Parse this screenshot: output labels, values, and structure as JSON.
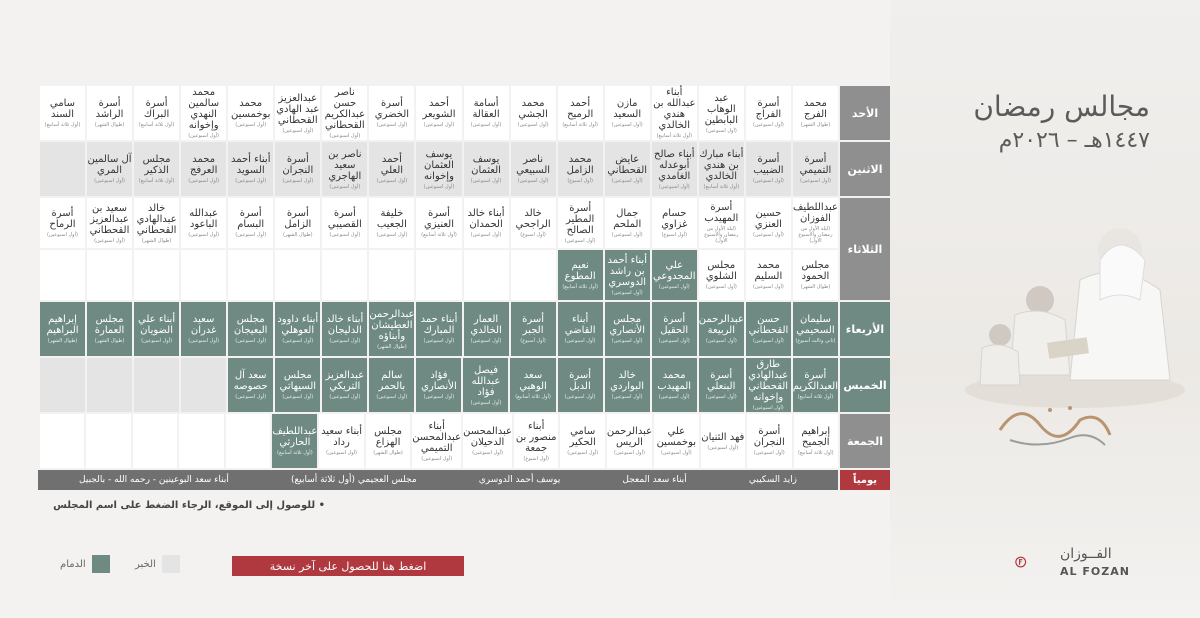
{
  "header": {
    "title": "مجالس رمضان",
    "subtitle": "١٤٤٧هـ – ٢٠٢٦م"
  },
  "days": [
    {
      "key": "sun",
      "label": "الأحد",
      "style": "grey",
      "cells": [
        {
          "name": "محمد الفرج",
          "note": "(طوال الشهر)",
          "kind": "white"
        },
        {
          "name": "أسرة الفراج",
          "note": "(أول اسبوعين)",
          "kind": "white"
        },
        {
          "name": "عبد الوهاب البابطين",
          "note": "(أول اسبوعين)",
          "kind": "white"
        },
        {
          "name": "أبناء عبدالله بن هندي الخالدي",
          "note": "(أول ثلاثة أسابيع)",
          "kind": "white"
        },
        {
          "name": "مازن السعيد",
          "note": "(أول اسبوعين)",
          "kind": "white"
        },
        {
          "name": "أحمد الرميح",
          "note": "(أول ثلاثة أسابيع)",
          "kind": "white"
        },
        {
          "name": "محمد الجشي",
          "note": "(أول اسبوعين)",
          "kind": "white"
        },
        {
          "name": "أسامة العقالة",
          "note": "(أول اسبوعين)",
          "kind": "white"
        },
        {
          "name": "أحمد الشويعر",
          "note": "(أول اسبوعين)",
          "kind": "white"
        },
        {
          "name": "أسرة الخضري",
          "note": "(أول اسبوعين)",
          "kind": "white"
        },
        {
          "name": "ناصر حسن عبدالكريم القحطاني",
          "note": "(أول اسبوعين)",
          "kind": "white"
        },
        {
          "name": "عبدالعزيز عبد الهادي القحطاني",
          "note": "(أول اسبوعين)",
          "kind": "white"
        },
        {
          "name": "محمد بوخمسين",
          "note": "(أول اسبوعين)",
          "kind": "white"
        },
        {
          "name": "محمد سالمين النهدي وإخوانه",
          "note": "(أول اسبوعين)",
          "kind": "white"
        },
        {
          "name": "أسرة البراك",
          "note": "(أول ثلاثة أسابيع)",
          "kind": "white"
        },
        {
          "name": "أسرة الراشد",
          "note": "(طوال الشهر)",
          "kind": "white"
        },
        {
          "name": "سامي السند",
          "note": "(أول ثلاثة أسابيع)",
          "kind": "white"
        }
      ]
    },
    {
      "key": "mon",
      "label": "الاثنين",
      "style": "grey",
      "cells": [
        {
          "name": "أسرة التميمي",
          "note": "(أول اسبوعين)",
          "kind": "grey"
        },
        {
          "name": "أسرة الضبيب",
          "note": "(أول اسبوعين)",
          "kind": "grey"
        },
        {
          "name": "أبناء مبارك بن هندي الخالدي",
          "note": "(أول ثلاثة أسابيع)",
          "kind": "grey"
        },
        {
          "name": "أبناء صالح أبوعدله الغامدي",
          "note": "(أول اسبوعين)",
          "kind": "grey"
        },
        {
          "name": "عايض القحطاني",
          "note": "(أول اسبوعين)",
          "kind": "grey"
        },
        {
          "name": "محمد الزامل",
          "note": "(أول اسبوع)",
          "kind": "grey"
        },
        {
          "name": "ناصر السبيعي",
          "note": "(أول اسبوعين)",
          "kind": "grey"
        },
        {
          "name": "يوسف العثمان",
          "note": "(أول اسبوعين)",
          "kind": "grey"
        },
        {
          "name": "يوسف العثمان وإخوانه",
          "note": "(أول اسبوعين)",
          "kind": "grey"
        },
        {
          "name": "أحمد العلي",
          "note": "(أول اسبوعين)",
          "kind": "grey"
        },
        {
          "name": "ناصر بن سعيد الهاجري",
          "note": "(أول اسبوعين)",
          "kind": "grey"
        },
        {
          "name": "أسرة النجران",
          "note": "(أول اسبوعين)",
          "kind": "grey"
        },
        {
          "name": "أبناء أحمد السويد",
          "note": "(أول اسبوعين)",
          "kind": "grey"
        },
        {
          "name": "محمد العرفج",
          "note": "(أول اسبوعين)",
          "kind": "grey"
        },
        {
          "name": "مجلس الذكير",
          "note": "(أول ثلاثة أسابيع)",
          "kind": "grey"
        },
        {
          "name": "آل سالمين المري",
          "note": "(أول اسبوعين)",
          "kind": "grey"
        },
        {
          "name": "",
          "note": "",
          "kind": "empty"
        }
      ]
    },
    {
      "key": "tue",
      "label": "الثلاثاء",
      "style": "grey",
      "tall": true,
      "top": [
        {
          "name": "عبداللطيف الفوزان",
          "note": "(ليلة الأول من رمضان والأسبوع الأول)",
          "kind": "white"
        },
        {
          "name": "حسين العنزي",
          "note": "(أول اسبوعين)",
          "kind": "white"
        },
        {
          "name": "أسرة المهيدب",
          "note": "(ليلة الأول من رمضان والأسبوع الأول)",
          "kind": "white"
        },
        {
          "name": "حسام غزاوي",
          "note": "(أول اسبوع)",
          "kind": "white"
        },
        {
          "name": "جمال الملحم",
          "note": "(أول اسبوعين)",
          "kind": "white"
        },
        {
          "name": "أسرة المطير الصالح",
          "note": "(أول اسبوعين)",
          "kind": "white"
        },
        {
          "name": "خالد الراجحي",
          "note": "(أول اسبوع)",
          "kind": "white"
        },
        {
          "name": "أبناء خالد الحمدان",
          "note": "(أول اسبوعين)",
          "kind": "white"
        },
        {
          "name": "أسرة العنيزي",
          "note": "(أول ثلاثة أسابيع)",
          "kind": "white"
        },
        {
          "name": "خليفة الجعيب",
          "note": "(أول اسبوعين)",
          "kind": "white"
        },
        {
          "name": "أسرة القصيبي",
          "note": "(أول اسبوعين)",
          "kind": "white"
        },
        {
          "name": "أسرة الزامل",
          "note": "(طوال الشهر)",
          "kind": "white"
        },
        {
          "name": "أسرة البسام",
          "note": "(أول اسبوعين)",
          "kind": "white"
        },
        {
          "name": "عبدالله الباعود",
          "note": "(أول اسبوعين)",
          "kind": "white"
        },
        {
          "name": "خالد عبدالهادي القحطاني",
          "note": "(طوال الشهر)",
          "kind": "white"
        },
        {
          "name": "سعيد بن عبدالعزيز القحطاني",
          "note": "(أول اسبوعين)",
          "kind": "white"
        },
        {
          "name": "أسرة الرماح",
          "note": "(أول اسبوعين)",
          "kind": "white"
        }
      ],
      "bottom": [
        {
          "name": "مجلس الحمود",
          "note": "(طوال الشهر)",
          "kind": "white"
        },
        {
          "name": "محمد السليم",
          "note": "(أول اسبوعين)",
          "kind": "white"
        },
        {
          "name": "مجلس الشلوي",
          "note": "(أول اسبوعين)",
          "kind": "white"
        },
        {
          "name": "علي المجدوعي",
          "note": "(أول اسبوعين)",
          "kind": "green"
        },
        {
          "name": "أبناء أحمد بن راشد الدوسري",
          "note": "(أول اسبوعين)",
          "kind": "green"
        },
        {
          "name": "نعيم المطوع",
          "note": "(أول ثلاثة أسابيع)",
          "kind": "green"
        },
        {
          "name": "",
          "note": "",
          "kind": "white"
        },
        {
          "name": "",
          "note": "",
          "kind": "white"
        },
        {
          "name": "",
          "note": "",
          "kind": "white"
        },
        {
          "name": "",
          "note": "",
          "kind": "white"
        },
        {
          "name": "",
          "note": "",
          "kind": "white"
        },
        {
          "name": "",
          "note": "",
          "kind": "white"
        },
        {
          "name": "",
          "note": "",
          "kind": "white"
        },
        {
          "name": "",
          "note": "",
          "kind": "white"
        },
        {
          "name": "",
          "note": "",
          "kind": "white"
        },
        {
          "name": "",
          "note": "",
          "kind": "white"
        },
        {
          "name": "",
          "note": "",
          "kind": "white"
        }
      ]
    },
    {
      "key": "wed",
      "label": "الأربعاء",
      "style": "green",
      "cells": [
        {
          "name": "سليمان السحيمي",
          "note": "(ثاني وثالث أسبوع)",
          "kind": "green"
        },
        {
          "name": "حسن القحطاني",
          "note": "(أول اسبوعين)",
          "kind": "green"
        },
        {
          "name": "عبدالرحمن الربيعة",
          "note": "(أول اسبوعين)",
          "kind": "green"
        },
        {
          "name": "أسرة الحقيل",
          "note": "(أول اسبوعين)",
          "kind": "green"
        },
        {
          "name": "مجلس الأنصاري",
          "note": "(أول اسبوعين)",
          "kind": "green"
        },
        {
          "name": "أبناء القاضي",
          "note": "(أول اسبوعين)",
          "kind": "green"
        },
        {
          "name": "أسرة الجبر",
          "note": "(أول أسبوع)",
          "kind": "green"
        },
        {
          "name": "العمار الخالدي",
          "note": "(أول اسبوعين)",
          "kind": "green"
        },
        {
          "name": "أبناء حمد المبارك",
          "note": "(أول اسبوعين)",
          "kind": "green"
        },
        {
          "name": "عبدالرحمن العطيشان وأبناؤه",
          "note": "(طوال الشهر)",
          "kind": "green"
        },
        {
          "name": "أبناء خالد الدليجان",
          "note": "(أول اسبوعين)",
          "kind": "green"
        },
        {
          "name": "أبناء داوود العوهلي",
          "note": "(أول اسبوعين)",
          "kind": "green"
        },
        {
          "name": "مجلس البعيجان",
          "note": "(أول اسبوعين)",
          "kind": "green"
        },
        {
          "name": "سعيد غدران",
          "note": "(أول اسبوعين)",
          "kind": "green"
        },
        {
          "name": "أبناء علي الضويان",
          "note": "(أول اسبوعين)",
          "kind": "green"
        },
        {
          "name": "مجلس العمارة",
          "note": "(طوال الشهر)",
          "kind": "green"
        },
        {
          "name": "إبراهيم البراهيم",
          "note": "(طوال الشهر)",
          "kind": "green"
        }
      ]
    },
    {
      "key": "thu",
      "label": "الخميس",
      "style": "green",
      "cells": [
        {
          "name": "أسرة العبدالكريم",
          "note": "(أول ثلاثة أسابيع)",
          "kind": "green"
        },
        {
          "name": "طارق عبدالهادي القحطاني وإخوانه",
          "note": "(أول اسبوعين)",
          "kind": "green"
        },
        {
          "name": "أسرة البنعلي",
          "note": "(أول اسبوعين)",
          "kind": "green"
        },
        {
          "name": "محمد المهيدب",
          "note": "(أول اسبوعين)",
          "kind": "green"
        },
        {
          "name": "خالد البواردي",
          "note": "(أول اسبوعين)",
          "kind": "green"
        },
        {
          "name": "أسرة الدبل",
          "note": "(أول اسبوعين)",
          "kind": "green"
        },
        {
          "name": "سعد الوهبي",
          "note": "(أول ثلاثة أسابيع)",
          "kind": "green"
        },
        {
          "name": "فيصل عبدالله فؤاد",
          "note": "(أول اسبوعين)",
          "kind": "green"
        },
        {
          "name": "فؤاد الأنصاري",
          "note": "(أول اسبوعين)",
          "kind": "green"
        },
        {
          "name": "سالم بالحمر",
          "note": "(أول اسبوعين)",
          "kind": "green"
        },
        {
          "name": "عبدالعزيز التريكي",
          "note": "(أول اسبوعين)",
          "kind": "green"
        },
        {
          "name": "مجلس السيهاتي",
          "note": "(أول اسبوعين)",
          "kind": "green"
        },
        {
          "name": "سعد آل حصوصه",
          "note": "(أول اسبوعين)",
          "kind": "green"
        },
        {
          "name": "",
          "note": "",
          "kind": "empty"
        },
        {
          "name": "",
          "note": "",
          "kind": "empty"
        },
        {
          "name": "",
          "note": "",
          "kind": "empty"
        },
        {
          "name": "",
          "note": "",
          "kind": "empty"
        }
      ]
    },
    {
      "key": "fri",
      "label": "الجمعة",
      "style": "grey",
      "cells": [
        {
          "name": "إبراهيم الجميح",
          "note": "(أول ثلاثة أسابيع)",
          "kind": "white"
        },
        {
          "name": "أسرة النجران",
          "note": "(أول اسبوعين)",
          "kind": "white"
        },
        {
          "name": "فهد الثنيان",
          "note": "(أول اسبوعين)",
          "kind": "white"
        },
        {
          "name": "علي بوخمسين",
          "note": "(أول اسبوعين)",
          "kind": "white"
        },
        {
          "name": "عبدالرحمن الريس",
          "note": "(أول اسبوعين)",
          "kind": "white"
        },
        {
          "name": "سامي الحكير",
          "note": "(أول اسبوعين)",
          "kind": "white"
        },
        {
          "name": "أبناء منصور بن جمعة",
          "note": "(أول اسبوع)",
          "kind": "white"
        },
        {
          "name": "عبدالمحسن الدحيلان",
          "note": "(أول اسبوعين)",
          "kind": "white"
        },
        {
          "name": "أبناء عبدالمحسن التميمي",
          "note": "(أول اسبوعين)",
          "kind": "white"
        },
        {
          "name": "مجلس الهزاع",
          "note": "(طوال الشهر)",
          "kind": "white"
        },
        {
          "name": "أبناء سعيد رداد",
          "note": "(أول اسبوعين)",
          "kind": "white"
        },
        {
          "name": "عبداللطيف الحارثي",
          "note": "(أول ثلاثة أسابيع)",
          "kind": "green"
        },
        {
          "name": "",
          "note": "",
          "kind": "white"
        },
        {
          "name": "",
          "note": "",
          "kind": "white"
        },
        {
          "name": "",
          "note": "",
          "kind": "white"
        },
        {
          "name": "",
          "note": "",
          "kind": "white"
        },
        {
          "name": "",
          "note": "",
          "kind": "white"
        }
      ]
    }
  ],
  "daily": {
    "label": "يومياً",
    "items": [
      "زايد السكيبي",
      "أبناء سعد المعجل",
      "يوسف أحمد الدوسري",
      "مجلس العجيمي (أول ثلاثة أسابيع)",
      "أبناء سعد البوعينين - رحمه الله - بالجبيل"
    ]
  },
  "note": "للوصول إلى الموقع، الرجاء الضغط على اسم المجلس",
  "legend": {
    "khobar": "الخبر",
    "dammam": "الدمام"
  },
  "cta": "اضغط هنا للحصول على آخر نسخة",
  "logo": {
    "ar": "الفــوزان",
    "en": "AL FOZAN"
  },
  "colors": {
    "green": "#6f8a82",
    "grey": "#e4e4e4",
    "red": "#b0383f"
  }
}
